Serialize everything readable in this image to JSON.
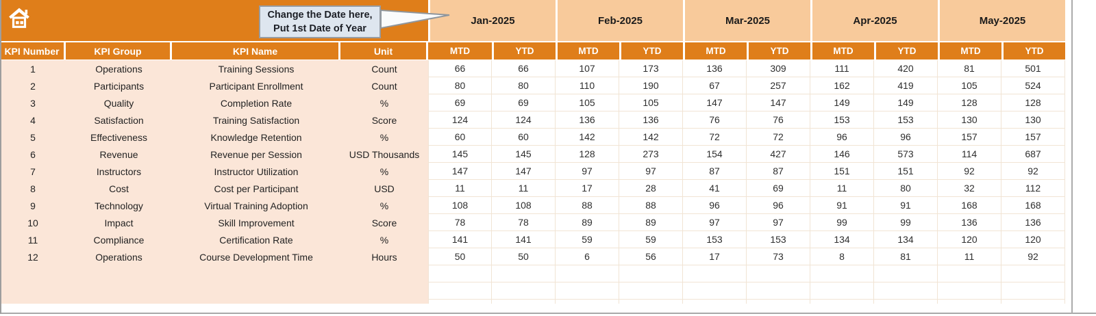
{
  "header": {
    "home_icon": "home-icon",
    "callout": {
      "line1": "Change the Date here,",
      "line2": "Put 1st Date of Year"
    }
  },
  "colors": {
    "accent_orange": "#DF7E1A",
    "month_band_peach": "#F8CA9B",
    "row_peach": "#FBE6D8",
    "callout_bg": "#DEE6EF"
  },
  "table": {
    "left_headers": [
      "KPI Number",
      "KPI Group",
      "KPI Name",
      "Unit"
    ],
    "months": [
      "Jan-2025",
      "Feb-2025",
      "Mar-2025",
      "Apr-2025",
      "May-2025"
    ],
    "sub_headers": [
      "MTD",
      "YTD"
    ],
    "rows": [
      {
        "kpi_number": "1",
        "kpi_group": "Operations",
        "kpi_name": "Training Sessions",
        "unit": "Count",
        "values": [
          66,
          66,
          107,
          173,
          136,
          309,
          111,
          420,
          81,
          501
        ]
      },
      {
        "kpi_number": "2",
        "kpi_group": "Participants",
        "kpi_name": "Participant Enrollment",
        "unit": "Count",
        "values": [
          80,
          80,
          110,
          190,
          67,
          257,
          162,
          419,
          105,
          524
        ]
      },
      {
        "kpi_number": "3",
        "kpi_group": "Quality",
        "kpi_name": "Completion Rate",
        "unit": "%",
        "values": [
          69,
          69,
          105,
          105,
          147,
          147,
          149,
          149,
          128,
          128
        ]
      },
      {
        "kpi_number": "4",
        "kpi_group": "Satisfaction",
        "kpi_name": "Training Satisfaction",
        "unit": "Score",
        "values": [
          124,
          124,
          136,
          136,
          76,
          76,
          153,
          153,
          130,
          130
        ]
      },
      {
        "kpi_number": "5",
        "kpi_group": "Effectiveness",
        "kpi_name": "Knowledge Retention",
        "unit": "%",
        "values": [
          60,
          60,
          142,
          142,
          72,
          72,
          96,
          96,
          157,
          157
        ]
      },
      {
        "kpi_number": "6",
        "kpi_group": "Revenue",
        "kpi_name": "Revenue per Session",
        "unit": "USD Thousands",
        "values": [
          145,
          145,
          128,
          273,
          154,
          427,
          146,
          573,
          114,
          687
        ]
      },
      {
        "kpi_number": "7",
        "kpi_group": "Instructors",
        "kpi_name": "Instructor Utilization",
        "unit": "%",
        "values": [
          147,
          147,
          97,
          97,
          87,
          87,
          151,
          151,
          92,
          92
        ]
      },
      {
        "kpi_number": "8",
        "kpi_group": "Cost",
        "kpi_name": "Cost per Participant",
        "unit": "USD",
        "values": [
          11,
          11,
          17,
          28,
          41,
          69,
          11,
          80,
          32,
          112
        ]
      },
      {
        "kpi_number": "9",
        "kpi_group": "Technology",
        "kpi_name": "Virtual Training Adoption",
        "unit": "%",
        "values": [
          108,
          108,
          88,
          88,
          96,
          96,
          91,
          91,
          168,
          168
        ]
      },
      {
        "kpi_number": "10",
        "kpi_group": "Impact",
        "kpi_name": "Skill Improvement",
        "unit": "Score",
        "values": [
          78,
          78,
          89,
          89,
          97,
          97,
          99,
          99,
          136,
          136
        ]
      },
      {
        "kpi_number": "11",
        "kpi_group": "Compliance",
        "kpi_name": "Certification Rate",
        "unit": "%",
        "values": [
          141,
          141,
          59,
          59,
          153,
          153,
          134,
          134,
          120,
          120
        ]
      },
      {
        "kpi_number": "12",
        "kpi_group": "Operations",
        "kpi_name": "Course Development Time",
        "unit": "Hours",
        "values": [
          50,
          50,
          6,
          56,
          17,
          73,
          8,
          81,
          11,
          92
        ]
      }
    ]
  }
}
